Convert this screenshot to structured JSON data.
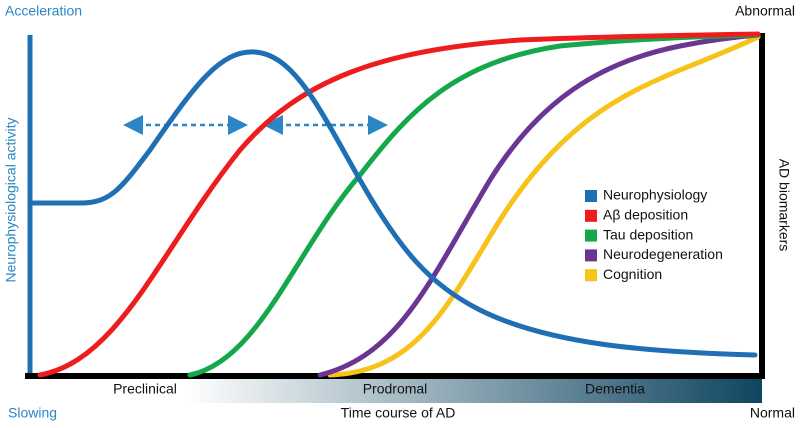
{
  "labels": {
    "top_left": "Acceleration",
    "bottom_left": "Slowing",
    "top_right": "Abnormal",
    "bottom_right": "Normal",
    "x_axis": "Time course of AD",
    "left_axis": "Neurophysiological activity",
    "right_axis": "AD biomarkers"
  },
  "phases": [
    "Preclinical",
    "Prodromal",
    "Dementia"
  ],
  "legend": [
    {
      "label": "Neurophysiology",
      "color": "#1f6fb5"
    },
    {
      "label": "Aβ deposition",
      "color": "#ee1c1c"
    },
    {
      "label": "Tau deposition",
      "color": "#14a84a"
    },
    {
      "label": "Neurodegeneration",
      "color": "#6a3593"
    },
    {
      "label": "Cognition",
      "color": "#f7c21a"
    }
  ]
}
